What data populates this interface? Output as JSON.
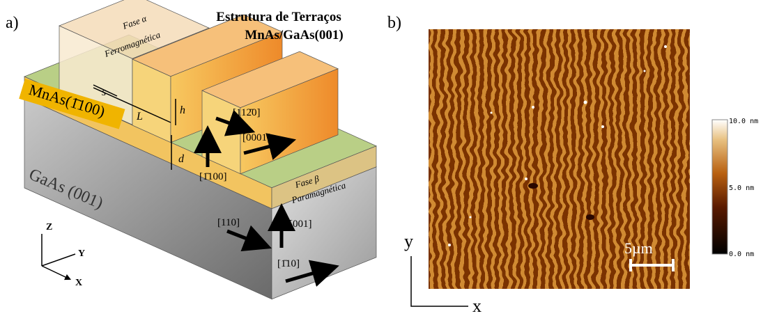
{
  "panel_a": {
    "label": "a)",
    "title": [
      "Estrutura de Terraços",
      "MnAs/GaAs(001)"
    ],
    "phase_alpha": [
      "Fase α",
      "Ferromagnética"
    ],
    "mnas_label": "MnAs(1̄100)",
    "dimensions": [
      "s",
      "L",
      "h",
      "d"
    ],
    "directions": [
      "[112̄0]",
      "[0001]",
      "[1̄100]",
      "[110]",
      "[001]",
      "[1̄10]"
    ],
    "phase_beta": [
      "Fase β",
      "Paramagnética"
    ],
    "gaas_label": "GaAs (001)",
    "axes": [
      "Z",
      "Y",
      "X"
    ]
  },
  "panel_b": {
    "label": "b)",
    "scale_bar": "5µm",
    "colorbar_ticks": [
      "10.0 nm",
      "5.0 nm",
      "0.0 nm"
    ],
    "axes": [
      "y",
      "x"
    ]
  }
}
